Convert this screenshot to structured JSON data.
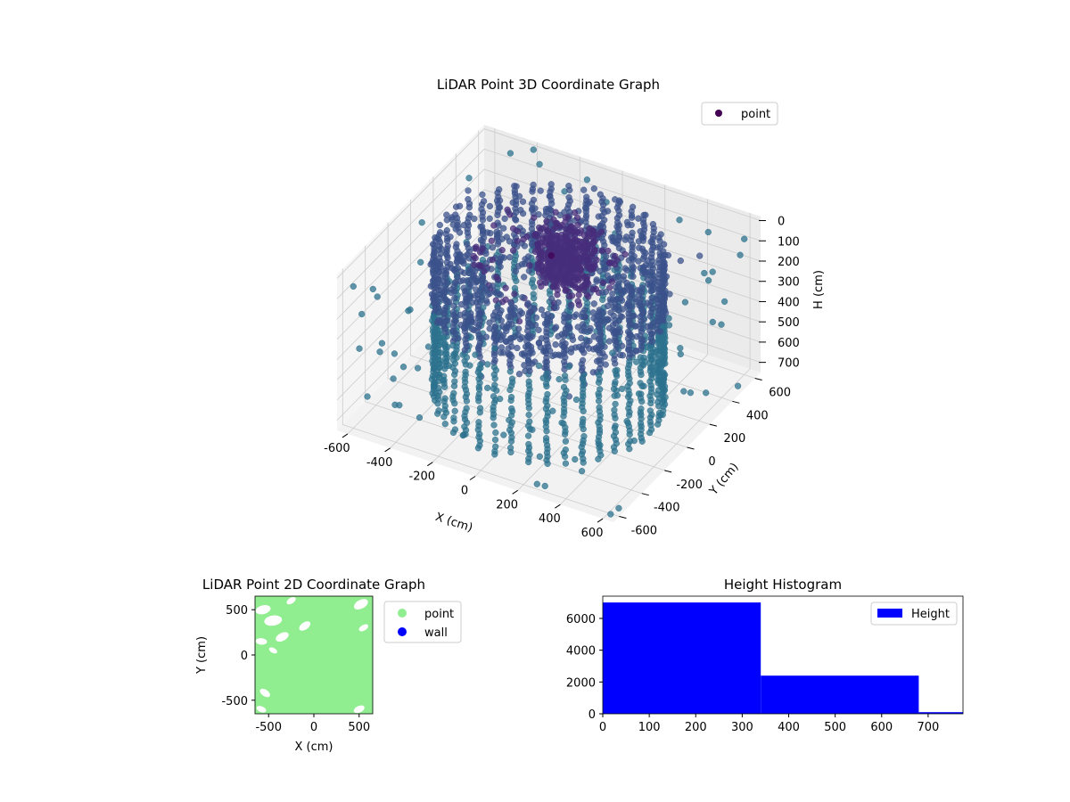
{
  "figure_titles": {
    "main": "LiDAR Point 3D Coordinate Graph",
    "scatter2d": "LiDAR Point 2D Coordinate Graph",
    "histogram": "Height Histogram"
  },
  "colors": {
    "point_dark": "#440154",
    "point_mid": "#3b528b",
    "point_teal": "#21918c",
    "point_light": "#5dc863",
    "point_2d": "#90ee90",
    "wall_2d": "#0000ff",
    "hist_bar": "#0000ff",
    "pane": "#f2f2f2",
    "grid": "#cccccc"
  },
  "chart_data": [
    {
      "type": "scatter",
      "dimension": "3d",
      "title": "LiDAR Point 3D Coordinate Graph",
      "xlabel": "X (cm)",
      "ylabel": "Y (cm)",
      "zlabel": "H (cm)",
      "xlim": [
        -650,
        650
      ],
      "ylim": [
        -650,
        650
      ],
      "zlim": [
        750,
        -20
      ],
      "z_axis_inverted": true,
      "x_ticks": [
        -600,
        -400,
        -200,
        0,
        200,
        400,
        600
      ],
      "y_ticks": [
        -600,
        -400,
        -200,
        0,
        200,
        400,
        600
      ],
      "z_ticks": [
        0,
        100,
        200,
        300,
        400,
        500,
        600,
        700
      ],
      "grid": true,
      "legend": {
        "placement": "top-right",
        "entries": [
          "point"
        ]
      },
      "colormap": "viridis",
      "structures": [
        {
          "kind": "wall-ring",
          "center": [
            0,
            0
          ],
          "radius": 480,
          "h_range": [
            0,
            750
          ],
          "columns": 40
        },
        {
          "kind": "core-cluster",
          "center": [
            0,
            150
          ],
          "radius": 130,
          "h_range": [
            0,
            250
          ]
        },
        {
          "kind": "ring-band",
          "center": [
            0,
            0
          ],
          "radius": 380,
          "h_range": [
            0,
            350
          ]
        }
      ],
      "scattered_points": [
        [
          -600,
          -600,
          50
        ],
        [
          600,
          600,
          80
        ],
        [
          -650,
          100,
          150
        ],
        [
          650,
          -200,
          200
        ],
        [
          -500,
          600,
          40
        ],
        [
          300,
          -650,
          100
        ],
        [
          -300,
          -500,
          300
        ],
        [
          550,
          300,
          10
        ],
        [
          -620,
          -350,
          250
        ],
        [
          420,
          620,
          120
        ],
        [
          100,
          -620,
          350
        ],
        [
          -150,
          620,
          60
        ],
        [
          620,
          0,
          300
        ],
        [
          -600,
          400,
          400
        ],
        [
          0,
          -650,
          150
        ],
        [
          500,
          -500,
          500
        ]
      ]
    },
    {
      "type": "scatter",
      "dimension": "2d",
      "title": "LiDAR Point 2D Coordinate Graph",
      "xlabel": "X (cm)",
      "ylabel": "Y (cm)",
      "xlim": [
        -650,
        650
      ],
      "ylim": [
        -650,
        650
      ],
      "x_ticks": [
        -500,
        0,
        500
      ],
      "y_ticks": [
        -500,
        0,
        500
      ],
      "legend": {
        "placement": "right-outside",
        "entries": [
          "point",
          "wall"
        ]
      },
      "coverage": "dense, nearly full square",
      "gaps": [
        [
          -560,
          500,
          60
        ],
        [
          -450,
          380,
          70
        ],
        [
          -350,
          200,
          55
        ],
        [
          -580,
          150,
          45
        ],
        [
          -250,
          600,
          40
        ],
        [
          520,
          560,
          60
        ],
        [
          550,
          300,
          40
        ],
        [
          -540,
          -420,
          45
        ],
        [
          -580,
          -600,
          40
        ],
        [
          500,
          -600,
          45
        ],
        [
          -100,
          320,
          50
        ],
        [
          -450,
          50,
          35
        ]
      ]
    },
    {
      "type": "bar",
      "subtype": "histogram",
      "title": "Height Histogram",
      "xlabel": "",
      "ylabel": "",
      "xlim": [
        0,
        775
      ],
      "ylim": [
        0,
        7400
      ],
      "x_ticks": [
        0,
        100,
        200,
        300,
        400,
        500,
        600,
        700
      ],
      "y_ticks": [
        0,
        2000,
        4000,
        6000
      ],
      "bins": [
        {
          "start": 0,
          "end": 340,
          "count": 7000
        },
        {
          "start": 340,
          "end": 680,
          "count": 2400
        },
        {
          "start": 680,
          "end": 1020,
          "count": 100
        }
      ],
      "legend": {
        "placement": "top-right",
        "entries": [
          "Height"
        ]
      }
    }
  ]
}
